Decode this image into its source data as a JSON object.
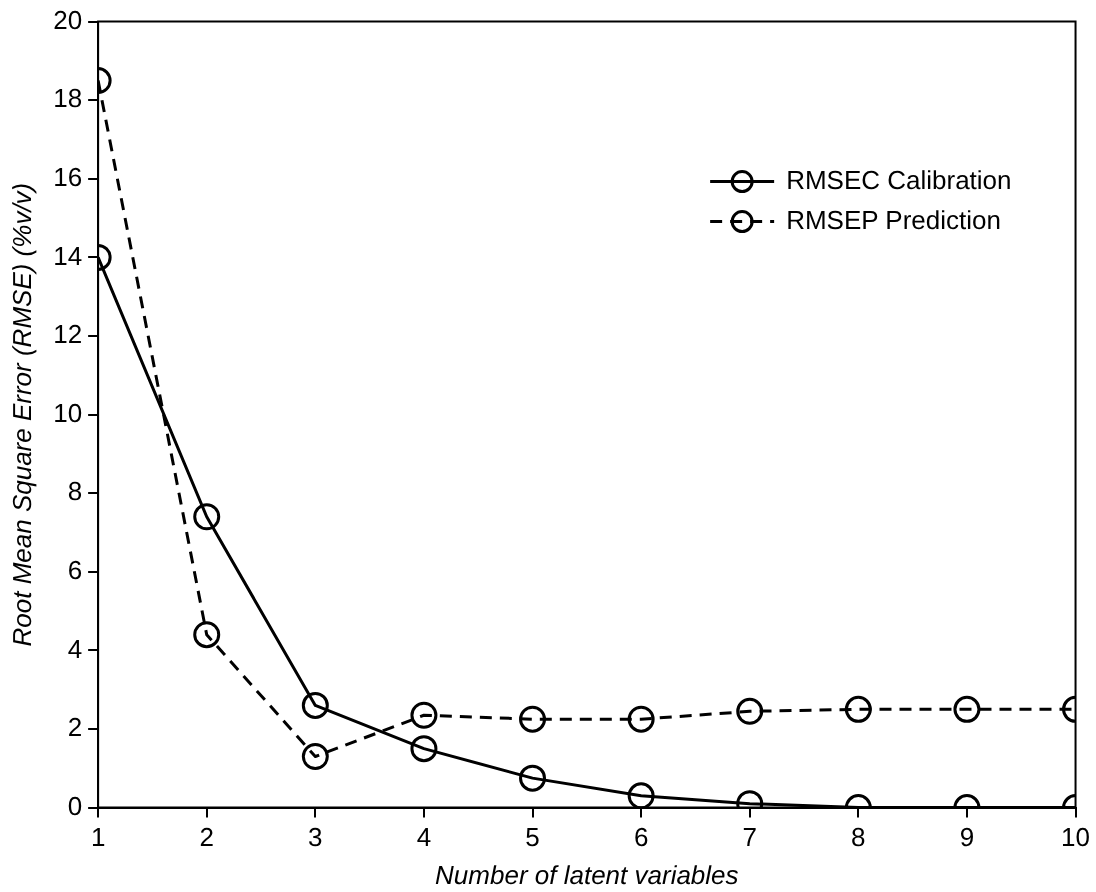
{
  "chart_data": {
    "type": "line",
    "xlabel": "Number of latent variables",
    "ylabel": "Root Mean Square Error (RMSE) (%v/v)",
    "x": [
      1,
      2,
      3,
      4,
      5,
      6,
      7,
      8,
      9,
      10
    ],
    "series": [
      {
        "name": "RMSEC Calibration",
        "color": "#000000",
        "line_style": "solid",
        "values": [
          14,
          7.4,
          2.6,
          1.5,
          0.75,
          0.3,
          0.1,
          0,
          0,
          0
        ]
      },
      {
        "name": "RMSEP Prediction",
        "color": "#000000",
        "line_style": "dashed",
        "values": [
          18.5,
          4.4,
          1.3,
          2.35,
          2.25,
          2.25,
          2.45,
          2.5,
          2.5,
          2.5
        ]
      }
    ],
    "xlim": [
      1,
      10
    ],
    "xticks": [
      1,
      2,
      3,
      4,
      5,
      6,
      7,
      8,
      9,
      10
    ],
    "ylim": [
      0,
      20
    ],
    "yticks": [
      0,
      2,
      4,
      6,
      8,
      10,
      12,
      14,
      16,
      18,
      20
    ],
    "marker": "circle",
    "legend": "top right",
    "grid": false
  }
}
